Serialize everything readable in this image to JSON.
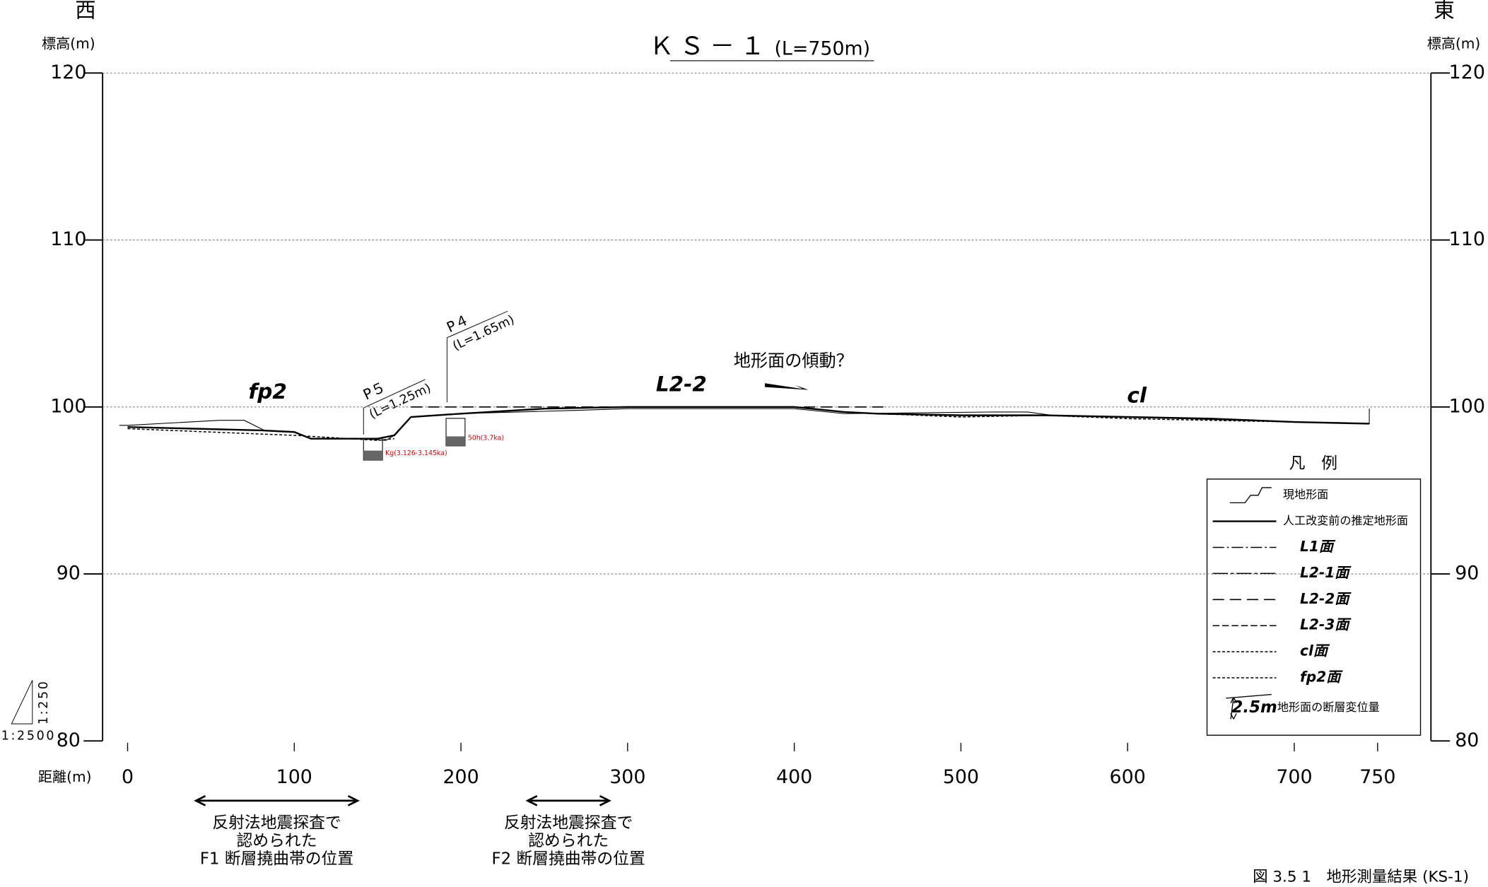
{
  "chart_data": {
    "type": "line",
    "title": "ＫＳ－１",
    "subtitle": "(L=750m)",
    "xlabel": "距離(m)",
    "ylabel": "標高(m)",
    "west": "西",
    "east": "東",
    "xlim": [
      -15,
      782
    ],
    "ylim": [
      80,
      120
    ],
    "xticks": [
      0,
      100,
      200,
      300,
      400,
      500,
      600,
      700,
      750
    ],
    "yticks": [
      80,
      90,
      100,
      110,
      120
    ],
    "grid": true,
    "series": [
      {
        "name": "現地形面",
        "style": "thin",
        "color": "#000000",
        "x": [
          -5,
          0,
          55,
          70,
          82,
          100,
          110,
          140,
          155,
          160,
          170,
          200,
          270,
          300,
          400,
          430,
          520,
          540,
          555,
          600,
          700,
          745,
          745
        ],
        "values": [
          98.9,
          98.9,
          99.2,
          99.2,
          98.6,
          98.5,
          98.1,
          98.1,
          98.0,
          98.3,
          99.4,
          99.6,
          99.8,
          99.9,
          99.9,
          99.6,
          99.7,
          99.7,
          99.5,
          99.4,
          99.1,
          99.0,
          99.9
        ]
      },
      {
        "name": "人工改変前の推定地形面",
        "style": "solid",
        "color": "#000000",
        "x": [
          0,
          80,
          100,
          110,
          150,
          160,
          170,
          200,
          250,
          300,
          400,
          430,
          450,
          500,
          550,
          600,
          650,
          700,
          745
        ],
        "values": [
          98.8,
          98.6,
          98.5,
          98.1,
          98.1,
          98.3,
          99.4,
          99.6,
          99.9,
          100,
          100,
          99.7,
          99.6,
          99.5,
          99.5,
          99.4,
          99.3,
          99.1,
          99.0
        ]
      },
      {
        "name": "L1面",
        "style": "dashdot",
        "color": "#000000",
        "x": [],
        "values": []
      },
      {
        "name": "L2-1面",
        "style": "dashdotlong",
        "color": "#000000",
        "x": [],
        "values": []
      },
      {
        "name": "L2-2面",
        "style": "dashed",
        "color": "#000000",
        "x": [
          170,
          455
        ],
        "values": [
          100.0,
          100.0
        ]
      },
      {
        "name": "L2-3面",
        "style": "shortdash",
        "color": "#000000",
        "x": [],
        "values": []
      },
      {
        "name": "cl面",
        "style": "dotted",
        "color": "#000000",
        "x": [
          450,
          500,
          550,
          600,
          650,
          700,
          745
        ],
        "values": [
          99.6,
          99.4,
          99.5,
          99.3,
          99.2,
          99.1,
          99.0
        ]
      },
      {
        "name": "fp2面",
        "style": "dotted",
        "color": "#000000",
        "x": [
          0,
          50,
          100,
          150,
          160
        ],
        "values": [
          98.7,
          98.5,
          98.3,
          98.0,
          98.1
        ]
      }
    ],
    "annotations": {
      "fp2": "fp2",
      "l22": "L2-2",
      "cl": "cl",
      "tilt": "地形面の傾動？"
    },
    "pits": [
      {
        "name": "P５",
        "length": "(L=1.25m)",
        "age": "Kg(3.126-3.145ka)"
      },
      {
        "name": "P４",
        "length": "(L=1.65m)",
        "age": "50h(3.7ka)"
      }
    ],
    "fault_zones": [
      {
        "lines": [
          "反射法地震探査で",
          "認められた",
          "F1 断層撓曲帯の位置"
        ],
        "xspan": [
          41,
          138
        ]
      },
      {
        "lines": [
          "反射法地震探査で",
          "認められた",
          "F2 断層撓曲帯の位置"
        ],
        "xspan": [
          240,
          289
        ]
      }
    ],
    "legend_title": "凡　例",
    "displacement": {
      "value": "2.5m",
      "label": "地形面の断層変位量"
    },
    "scale": {
      "vertical": "1:250",
      "horizontal": "1:2500"
    },
    "caption": "図 3.5 1　地形測量結果 (KS-1)"
  }
}
